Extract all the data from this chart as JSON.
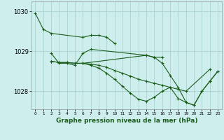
{
  "title": "Graphe pression niveau de la mer (hPa)",
  "bg_color": "#ceeeed",
  "grid_color": "#aad4d0",
  "line_color": "#1a5c1a",
  "marker_color": "#1a5c1a",
  "ylim": [
    1027.55,
    1030.25
  ],
  "yticks": [
    1028,
    1029,
    1030
  ],
  "series": [
    {
      "x": [
        0,
        1,
        2,
        6,
        7,
        8,
        9,
        10
      ],
      "y": [
        1029.95,
        1029.55,
        1029.45,
        1029.35,
        1029.4,
        1029.4,
        1029.35,
        1029.2
      ]
    },
    {
      "x": [
        2,
        3,
        4,
        5,
        6,
        7,
        14,
        15,
        16
      ],
      "y": [
        1028.95,
        1028.7,
        1028.7,
        1028.65,
        1028.95,
        1029.05,
        1028.9,
        1028.85,
        1028.85
      ]
    },
    {
      "x": [
        2,
        3,
        4,
        5,
        6,
        7,
        8,
        9,
        10,
        11,
        12,
        13,
        14,
        15,
        16,
        17,
        18,
        19,
        22
      ],
      "y": [
        1028.75,
        1028.72,
        1028.72,
        1028.7,
        1028.7,
        1028.68,
        1028.65,
        1028.6,
        1028.52,
        1028.45,
        1028.38,
        1028.3,
        1028.25,
        1028.2,
        1028.15,
        1028.1,
        1028.05,
        1028.0,
        1028.55
      ]
    },
    {
      "x": [
        2,
        3,
        4,
        5,
        6,
        7,
        8,
        9,
        10,
        11,
        12,
        13,
        14,
        15,
        16,
        17,
        18,
        19,
        20,
        21,
        22,
        23
      ],
      "y": [
        1028.75,
        1028.72,
        1028.72,
        1028.7,
        1028.7,
        1028.65,
        1028.58,
        1028.45,
        1028.3,
        1028.12,
        1027.95,
        1027.8,
        1027.75,
        1027.85,
        1028.0,
        1028.1,
        1027.82,
        1027.72,
        1027.65,
        1028.0,
        1028.25,
        1028.5
      ]
    },
    {
      "x": [
        6,
        14,
        15,
        16,
        17,
        18,
        19,
        20,
        21,
        22,
        23
      ],
      "y": [
        1028.7,
        1028.9,
        1028.85,
        1028.7,
        1028.4,
        1028.1,
        1027.72,
        1027.65,
        1028.0,
        1028.25,
        1028.5
      ]
    }
  ]
}
